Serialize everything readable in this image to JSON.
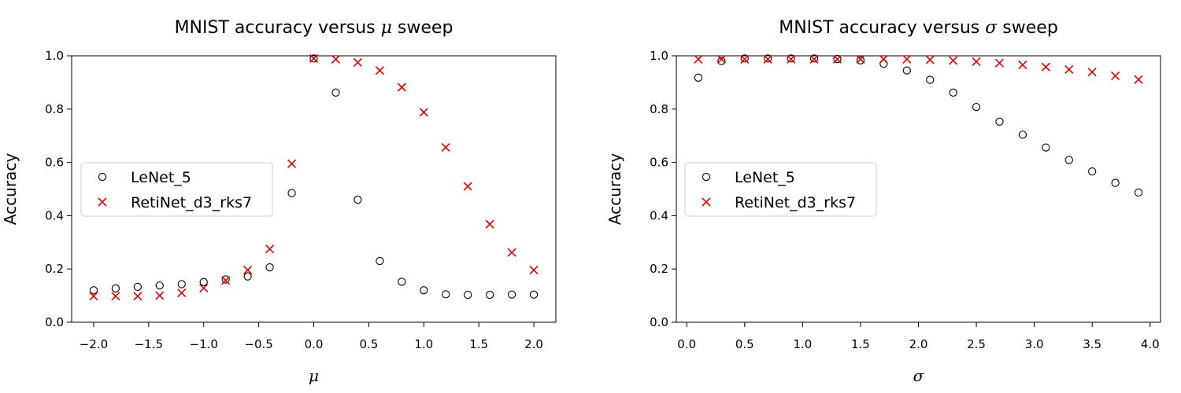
{
  "chart_data": [
    {
      "type": "scatter",
      "title_pre": "MNIST accuracy versus ",
      "title_symbol": "μ",
      "title_post": " sweep",
      "xlabel": "μ",
      "ylabel": "Accuracy",
      "xlim": [
        -2.2,
        2.2
      ],
      "ylim": [
        0.0,
        1.0
      ],
      "xticks": [
        -2.0,
        -1.5,
        -1.0,
        -0.5,
        0.0,
        0.5,
        1.0,
        1.5,
        2.0
      ],
      "xtick_labels": [
        "−2.0",
        "−1.5",
        "−1.0",
        "−0.5",
        "0.0",
        "0.5",
        "1.0",
        "1.5",
        "2.0"
      ],
      "yticks": [
        0.0,
        0.2,
        0.4,
        0.6,
        0.8,
        1.0
      ],
      "ytick_labels": [
        "0.0",
        "0.2",
        "0.4",
        "0.6",
        "0.8",
        "1.0"
      ],
      "grid": false,
      "legend_position": "center-left",
      "x": [
        -2.0,
        -1.8,
        -1.6,
        -1.4,
        -1.2,
        -1.0,
        -0.8,
        -0.6,
        -0.4,
        -0.2,
        0.0,
        0.2,
        0.4,
        0.6,
        0.8,
        1.0,
        1.2,
        1.4,
        1.6,
        1.8,
        2.0
      ],
      "series": [
        {
          "name": "LeNet_5",
          "marker": "circle",
          "color": "#000000",
          "values": [
            0.12,
            0.127,
            0.133,
            0.138,
            0.143,
            0.151,
            0.161,
            0.172,
            0.206,
            0.485,
            0.99,
            0.862,
            0.46,
            0.23,
            0.152,
            0.12,
            0.105,
            0.103,
            0.103,
            0.104,
            0.104
          ]
        },
        {
          "name": "RetiNet_d3_rks7",
          "marker": "x",
          "color": "#e00000",
          "values": [
            0.098,
            0.098,
            0.098,
            0.1,
            0.11,
            0.128,
            0.157,
            0.196,
            0.275,
            0.595,
            0.99,
            0.987,
            0.975,
            0.945,
            0.882,
            0.788,
            0.656,
            0.51,
            0.368,
            0.262,
            0.196
          ]
        }
      ]
    },
    {
      "type": "scatter",
      "title_pre": "MNIST accuracy versus ",
      "title_symbol": "σ",
      "title_post": " sweep",
      "xlabel": "σ",
      "ylabel": "Accuracy",
      "xlim": [
        -0.09,
        4.09
      ],
      "ylim": [
        0.0,
        1.0
      ],
      "xticks": [
        0.0,
        0.5,
        1.0,
        1.5,
        2.0,
        2.5,
        3.0,
        3.5,
        4.0
      ],
      "xtick_labels": [
        "0.0",
        "0.5",
        "1.0",
        "1.5",
        "2.0",
        "2.5",
        "3.0",
        "3.5",
        "4.0"
      ],
      "yticks": [
        0.0,
        0.2,
        0.4,
        0.6,
        0.8,
        1.0
      ],
      "ytick_labels": [
        "0.0",
        "0.2",
        "0.4",
        "0.6",
        "0.8",
        "1.0"
      ],
      "grid": false,
      "legend_position": "center-left",
      "x": [
        0.1,
        0.3,
        0.5,
        0.7,
        0.9,
        1.1,
        1.3,
        1.5,
        1.7,
        1.9,
        2.1,
        2.3,
        2.5,
        2.7,
        2.9,
        3.1,
        3.3,
        3.5,
        3.7,
        3.9
      ],
      "series": [
        {
          "name": "LeNet_5",
          "marker": "circle",
          "color": "#000000",
          "values": [
            0.918,
            0.98,
            0.99,
            0.99,
            0.99,
            0.99,
            0.988,
            0.983,
            0.97,
            0.945,
            0.91,
            0.862,
            0.808,
            0.753,
            0.704,
            0.656,
            0.609,
            0.566,
            0.523,
            0.487
          ]
        },
        {
          "name": "RetiNet_d3_rks7",
          "marker": "x",
          "color": "#e00000",
          "values": [
            0.987,
            0.987,
            0.987,
            0.987,
            0.987,
            0.987,
            0.987,
            0.987,
            0.987,
            0.987,
            0.985,
            0.982,
            0.978,
            0.973,
            0.966,
            0.958,
            0.949,
            0.939,
            0.925,
            0.911
          ]
        }
      ]
    }
  ]
}
